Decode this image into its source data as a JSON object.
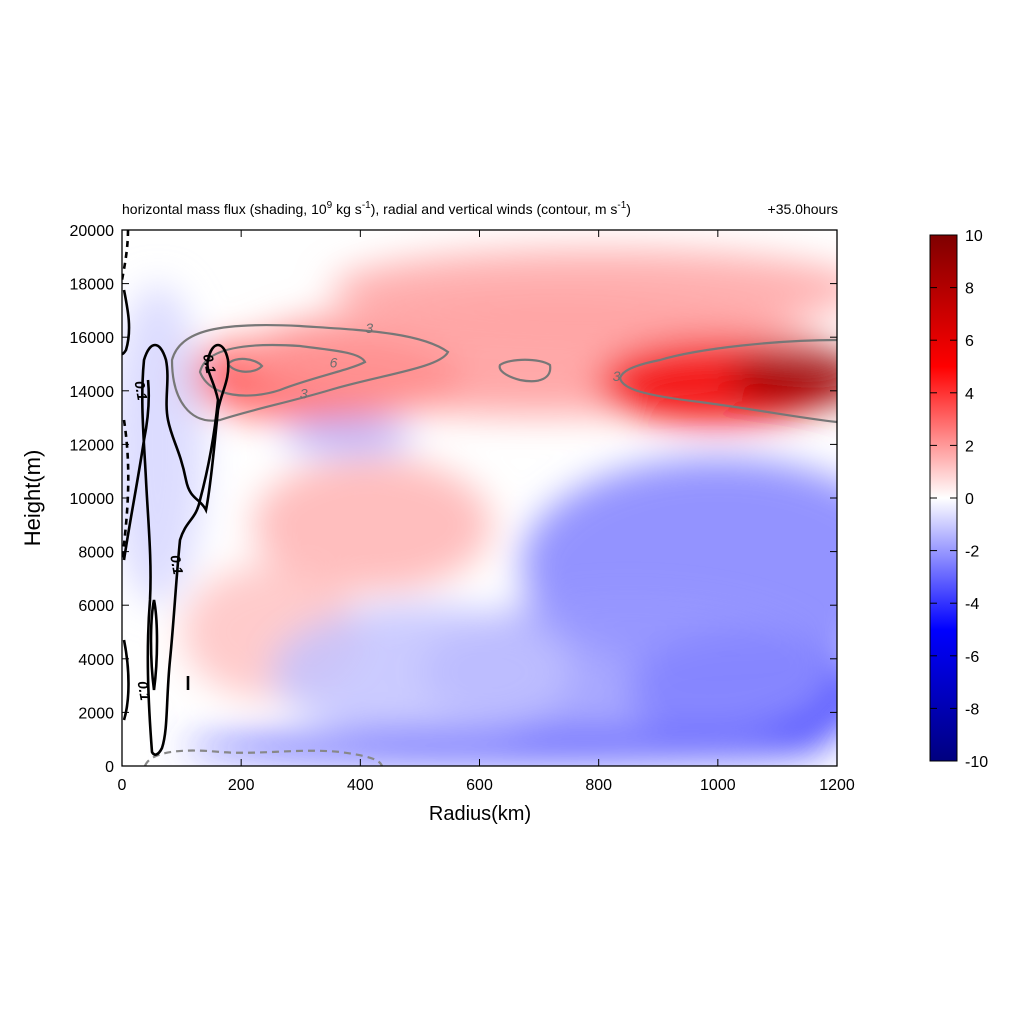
{
  "chart_data": {
    "type": "heatmap",
    "title": {
      "part1": "horizontal mass flux (shading, 10",
      "sup1": "9",
      "part2": " kg s",
      "sup2": "-1",
      "part3": "), radial and vertical winds (contour, m s",
      "sup3": "-1",
      "part4": ")"
    },
    "time_label": "+35.0hours",
    "xlabel": "Radius(km)",
    "ylabel": "Height(m)",
    "xlim": [
      0,
      1200
    ],
    "ylim": [
      0,
      20000
    ],
    "x_ticks": [
      0,
      200,
      400,
      600,
      800,
      1000,
      1200
    ],
    "y_ticks": [
      0,
      2000,
      4000,
      6000,
      8000,
      10000,
      12000,
      14000,
      16000,
      18000,
      20000
    ],
    "colorbar": {
      "range": [
        -10,
        10
      ],
      "ticks": [
        -10,
        -8,
        -6,
        -4,
        -2,
        0,
        2,
        4,
        6,
        8,
        10
      ],
      "colors": [
        "#00007f",
        "#0000ff",
        "#ffffff",
        "#ff0000",
        "#7f0000"
      ]
    },
    "contour_labels": [
      {
        "text": "3",
        "x": 415,
        "y": 16300
      },
      {
        "text": "6",
        "x": 355,
        "y": 15000
      },
      {
        "text": "3",
        "x": 305,
        "y": 13850
      },
      {
        "text": "3",
        "x": 830,
        "y": 14500
      },
      {
        "text": "0.1",
        "x": 145,
        "y": 15000
      },
      {
        "text": "0.1",
        "x": 30,
        "y": 14000
      },
      {
        "text": "0.1",
        "x": 90,
        "y": 7500
      },
      {
        "text": "0.1",
        "x": 35,
        "y": 2800
      }
    ],
    "shading_regions": [
      {
        "x": 330,
        "y": 14500,
        "rx": 240,
        "ry": 1600,
        "value": 3.5
      },
      {
        "x": 700,
        "y": 15300,
        "rx": 500,
        "ry": 2200,
        "value": 2.0
      },
      {
        "x": 1000,
        "y": 14300,
        "rx": 200,
        "ry": 1600,
        "value": 5.5
      },
      {
        "x": 1140,
        "y": 14500,
        "rx": 120,
        "ry": 1100,
        "value": 9.0
      },
      {
        "x": 800,
        "y": 17800,
        "rx": 450,
        "ry": 1500,
        "value": 1.8
      },
      {
        "x": 420,
        "y": 9000,
        "rx": 200,
        "ry": 2500,
        "value": 1.5
      },
      {
        "x": 250,
        "y": 5000,
        "rx": 150,
        "ry": 2500,
        "value": 1.2
      },
      {
        "x": 380,
        "y": 12300,
        "rx": 110,
        "ry": 700,
        "value": -1.5
      },
      {
        "x": 1000,
        "y": 7500,
        "rx": 330,
        "ry": 4000,
        "value": -2.5
      },
      {
        "x": 1050,
        "y": 2800,
        "rx": 200,
        "ry": 2200,
        "value": -5.0
      },
      {
        "x": 850,
        "y": 3500,
        "rx": 350,
        "ry": 2800,
        "value": -2.0
      },
      {
        "x": 500,
        "y": 3500,
        "rx": 250,
        "ry": 2500,
        "value": -1.2
      },
      {
        "x": 650,
        "y": 700,
        "rx": 550,
        "ry": 600,
        "value": -3.5
      },
      {
        "x": 60,
        "y": 12000,
        "rx": 80,
        "ry": 6000,
        "value": -0.8
      }
    ]
  }
}
